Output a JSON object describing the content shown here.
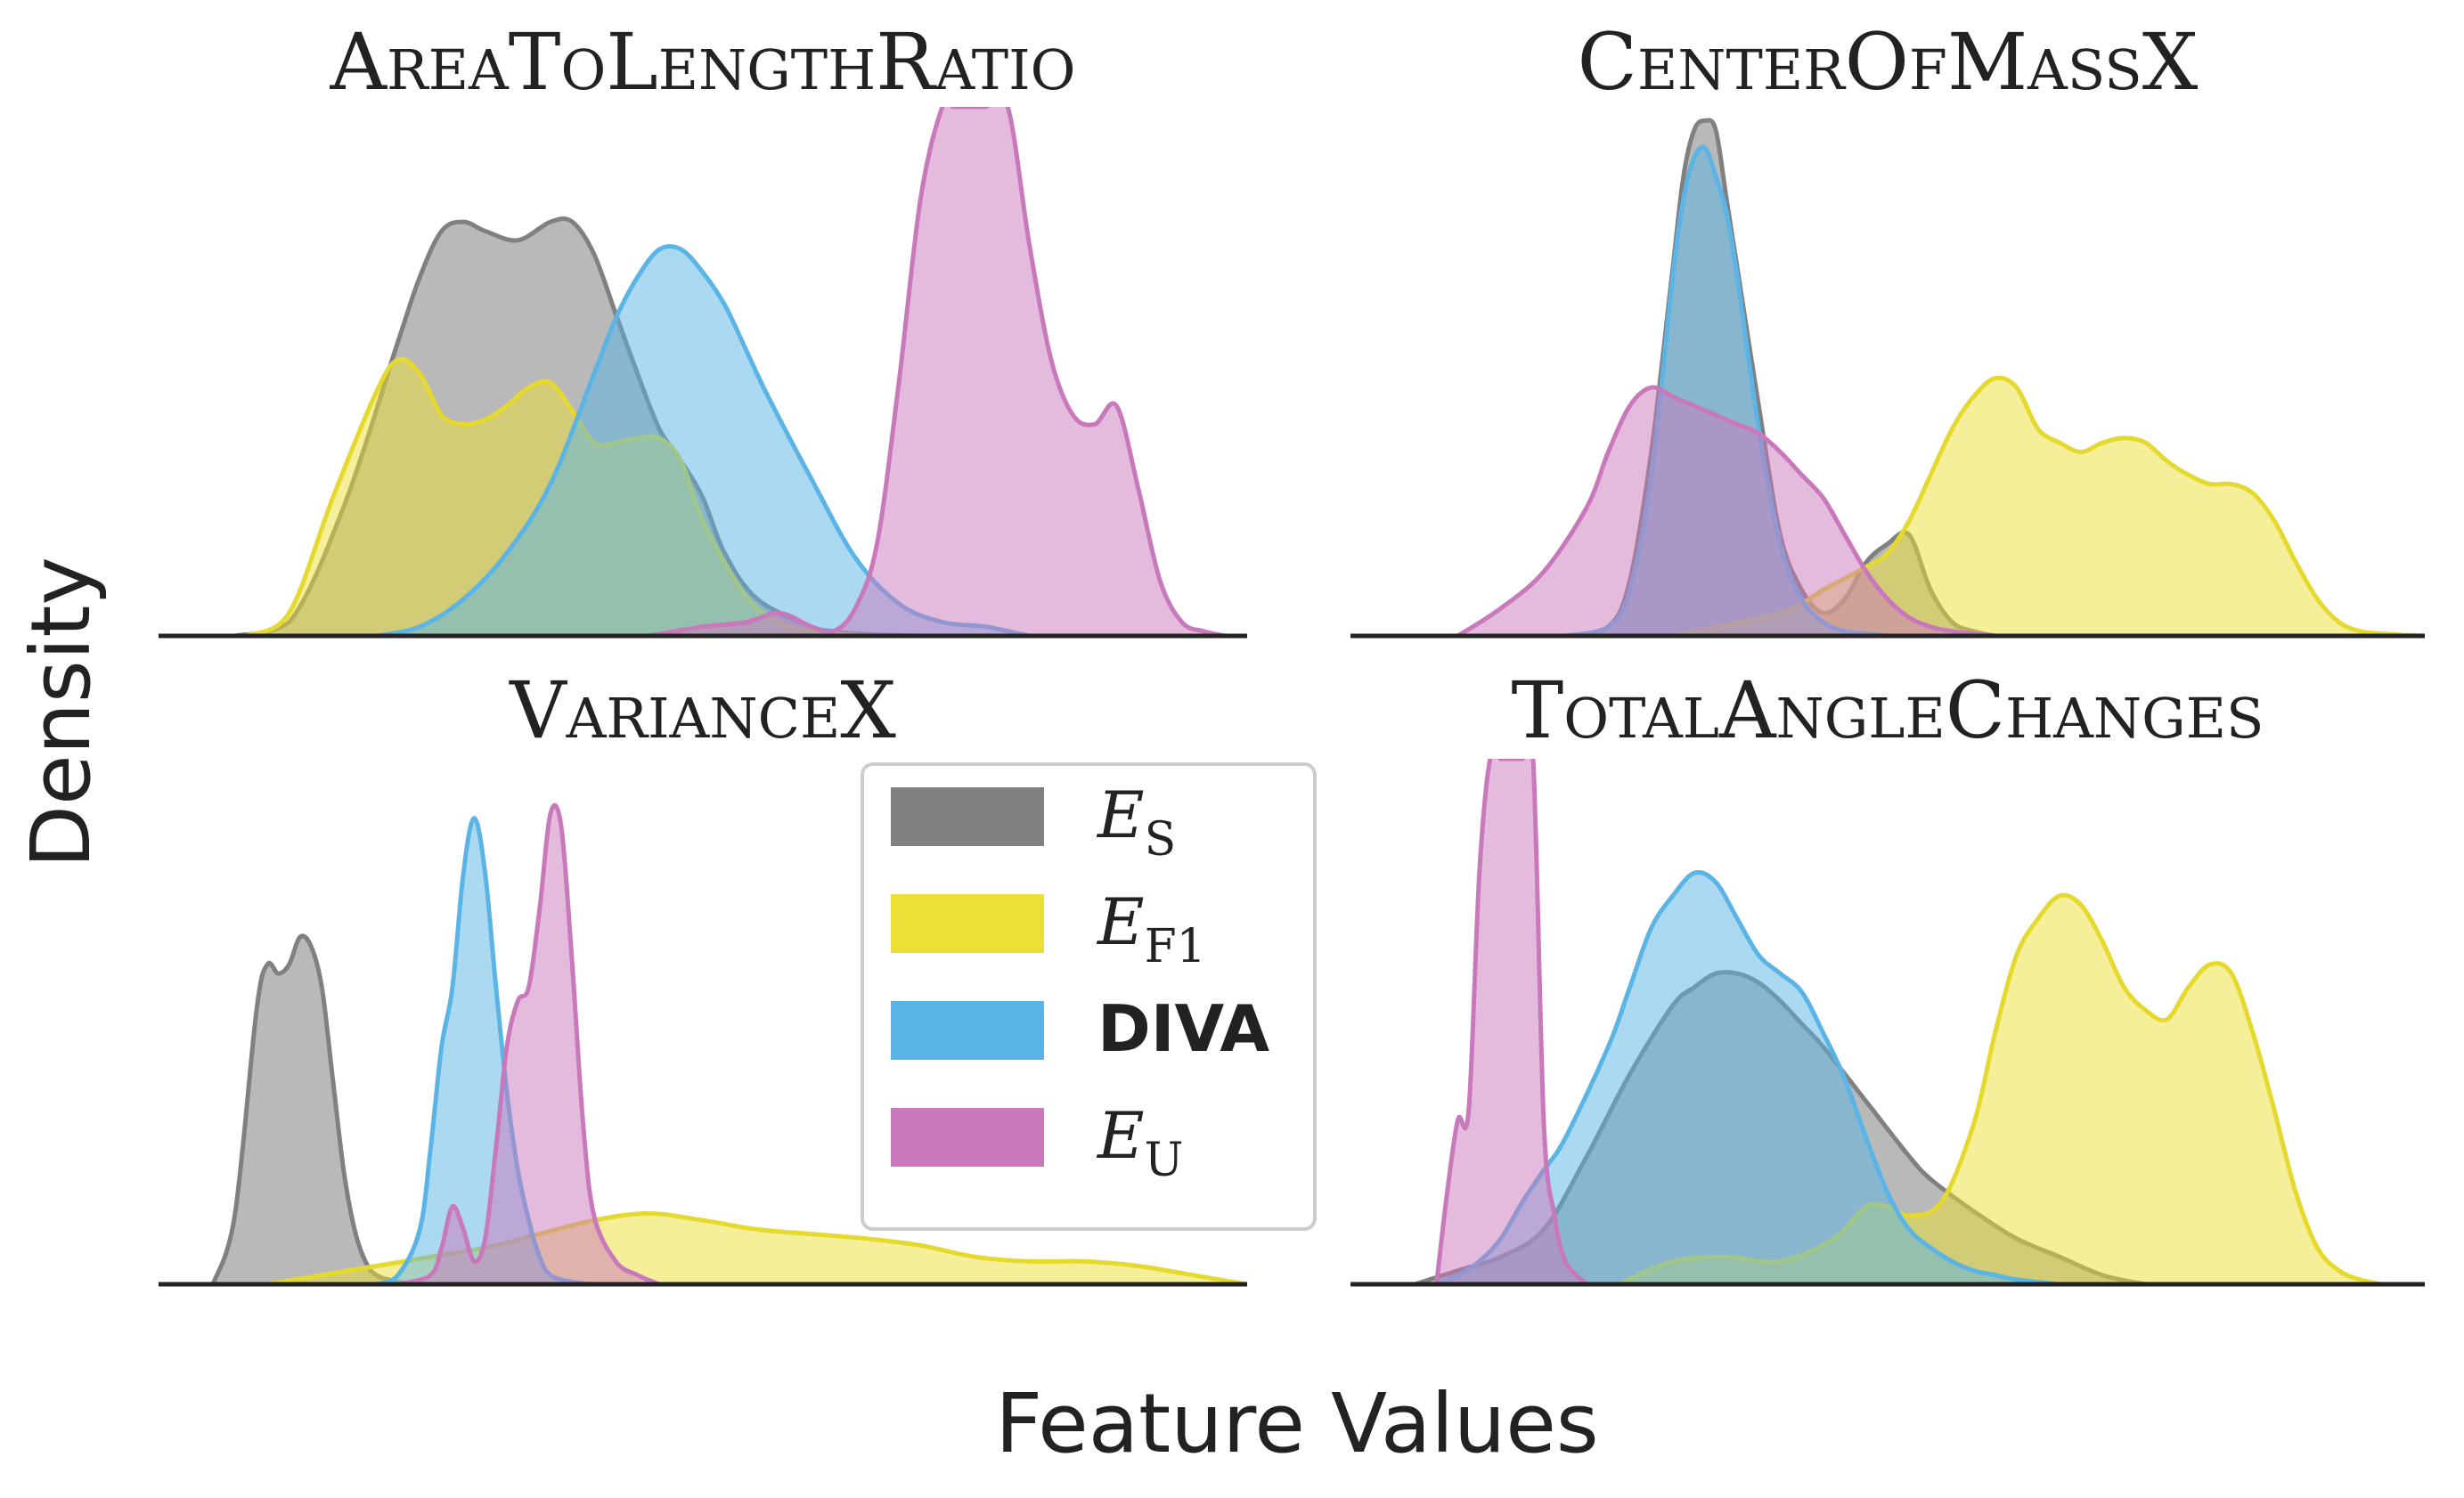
{
  "figure": {
    "ylabel": "Density",
    "xlabel": "Feature Values"
  },
  "legend": {
    "placement": "center",
    "items": [
      {
        "key": "es",
        "main": "E",
        "sub": "S",
        "bold": false,
        "color": "#808080"
      },
      {
        "key": "ef1",
        "main": "E",
        "sub": "F1",
        "bold": false,
        "color": "#ece036"
      },
      {
        "key": "diva",
        "main": "DIVA",
        "sub": "",
        "bold": true,
        "color": "#5ab4e6"
      },
      {
        "key": "eu",
        "main": "E",
        "sub": "U",
        "bold": false,
        "color": "#c978bb"
      }
    ]
  },
  "series_styles": {
    "es": {
      "fill": "#808080",
      "stroke": "#808080",
      "fill_opacity": 0.55
    },
    "ef1": {
      "fill": "#ece036",
      "stroke": "#e6d92e",
      "fill_opacity": 0.5
    },
    "diva": {
      "fill": "#5ab4e6",
      "stroke": "#5ab4e6",
      "fill_opacity": 0.5
    },
    "eu": {
      "fill": "#c978bb",
      "stroke": "#c978bb",
      "fill_opacity": 0.5
    }
  },
  "chart_data": [
    {
      "type": "area",
      "title": "AreaToLengthRatio",
      "xlabel": "",
      "ylabel": "",
      "xlim": [
        0,
        100
      ],
      "ylim": [
        0,
        1.15
      ],
      "grid": false,
      "series": [
        {
          "key": "es",
          "name": "E_S",
          "x": [
            7,
            12,
            17,
            22,
            24,
            26,
            28,
            30,
            33,
            36,
            38,
            40,
            42,
            44,
            46,
            48,
            50,
            52,
            55,
            60,
            62,
            64,
            67,
            70
          ],
          "y": [
            0,
            0.03,
            0.28,
            0.64,
            0.78,
            0.88,
            0.9,
            0.88,
            0.86,
            0.9,
            0.9,
            0.83,
            0.7,
            0.57,
            0.45,
            0.38,
            0.3,
            0.18,
            0.08,
            0.02,
            0.01,
            0.005,
            0.002,
            0
          ]
        },
        {
          "key": "ef1",
          "name": "E_F1",
          "x": [
            8,
            12,
            16,
            20,
            22,
            24,
            26,
            28,
            30,
            32,
            34,
            36,
            38,
            40,
            42,
            44,
            46,
            48,
            50,
            53,
            55,
            58,
            60,
            62,
            64,
            66,
            68
          ],
          "y": [
            0,
            0.05,
            0.3,
            0.53,
            0.6,
            0.57,
            0.48,
            0.46,
            0.47,
            0.5,
            0.54,
            0.55,
            0.49,
            0.42,
            0.42,
            0.43,
            0.43,
            0.38,
            0.25,
            0.12,
            0.06,
            0.02,
            0.01,
            0.005,
            0.002,
            0.001,
            0
          ]
        },
        {
          "key": "diva",
          "name": "DIVA",
          "x": [
            20,
            24,
            28,
            32,
            36,
            40,
            42,
            44,
            46,
            48,
            50,
            52,
            54,
            56,
            60,
            64,
            68,
            72,
            76,
            80
          ],
          "y": [
            0,
            0.02,
            0.08,
            0.18,
            0.33,
            0.57,
            0.69,
            0.78,
            0.84,
            0.84,
            0.79,
            0.72,
            0.62,
            0.52,
            0.34,
            0.17,
            0.07,
            0.03,
            0.02,
            0
          ]
        },
        {
          "key": "eu",
          "name": "E_U",
          "x": [
            45,
            50,
            54,
            57,
            60,
            62,
            64,
            66,
            68,
            70,
            72,
            73,
            74,
            75,
            76,
            78,
            80,
            82,
            84,
            86,
            88,
            90,
            92,
            94,
            96,
            98
          ],
          "y": [
            0,
            0.02,
            0.03,
            0.05,
            0.02,
            0.01,
            0.06,
            0.2,
            0.55,
            0.95,
            1.15,
            1.15,
            1.15,
            1.15,
            1.15,
            1.15,
            0.85,
            0.6,
            0.48,
            0.46,
            0.5,
            0.32,
            0.12,
            0.03,
            0.01,
            0
          ]
        }
      ]
    },
    {
      "type": "area",
      "title": "CenterOfMassX",
      "xlabel": "",
      "ylabel": "",
      "xlim": [
        0,
        100
      ],
      "ylim": [
        0,
        1.15
      ],
      "grid": false,
      "series": [
        {
          "key": "es",
          "name": "E_S",
          "x": [
            20,
            24,
            26,
            28,
            30,
            31,
            32,
            33,
            34,
            35,
            36,
            38,
            40,
            42,
            44,
            46,
            48,
            50,
            52,
            54,
            56,
            58,
            60
          ],
          "y": [
            0,
            0.02,
            0.12,
            0.4,
            0.8,
            1.0,
            1.1,
            1.12,
            1.1,
            0.95,
            0.8,
            0.5,
            0.22,
            0.1,
            0.05,
            0.08,
            0.16,
            0.2,
            0.22,
            0.1,
            0.03,
            0.01,
            0
          ]
        },
        {
          "key": "ef1",
          "name": "E_F1",
          "x": [
            30,
            40,
            44,
            48,
            50,
            52,
            54,
            56,
            58,
            60,
            62,
            64,
            66,
            68,
            70,
            72,
            74,
            76,
            78,
            80,
            82,
            84,
            86,
            88,
            90,
            92,
            94,
            96,
            98,
            100
          ],
          "y": [
            0,
            0.05,
            0.1,
            0.15,
            0.18,
            0.25,
            0.35,
            0.45,
            0.52,
            0.56,
            0.54,
            0.45,
            0.42,
            0.4,
            0.42,
            0.43,
            0.42,
            0.38,
            0.35,
            0.33,
            0.33,
            0.31,
            0.25,
            0.16,
            0.08,
            0.03,
            0.01,
            0.005,
            0.002,
            0
          ]
        },
        {
          "key": "diva",
          "name": "DIVA",
          "x": [
            20,
            24,
            26,
            28,
            30,
            31,
            32,
            33,
            34,
            35,
            36,
            38,
            40,
            42,
            44,
            46,
            48,
            50
          ],
          "y": [
            0,
            0.02,
            0.1,
            0.35,
            0.78,
            0.95,
            1.04,
            1.06,
            1.0,
            0.92,
            0.78,
            0.45,
            0.2,
            0.08,
            0.03,
            0.01,
            0.005,
            0
          ]
        },
        {
          "key": "eu",
          "name": "E_U",
          "x": [
            10,
            14,
            18,
            22,
            24,
            26,
            28,
            30,
            32,
            34,
            36,
            38,
            40,
            42,
            44,
            46,
            48,
            50,
            52,
            54,
            56,
            58,
            60
          ],
          "y": [
            0,
            0.06,
            0.14,
            0.28,
            0.4,
            0.5,
            0.54,
            0.52,
            0.5,
            0.48,
            0.46,
            0.44,
            0.4,
            0.35,
            0.3,
            0.22,
            0.14,
            0.08,
            0.04,
            0.02,
            0.01,
            0.005,
            0
          ]
        }
      ]
    },
    {
      "type": "area",
      "title": "VarianceX",
      "xlabel": "",
      "ylabel": "",
      "xlim": [
        0,
        100
      ],
      "ylim": [
        0,
        1.15
      ],
      "grid": false,
      "series": [
        {
          "key": "es",
          "name": "E_S",
          "x": [
            5,
            7,
            9,
            10,
            11,
            12,
            13,
            14,
            15,
            16,
            17,
            18,
            19,
            20,
            22,
            24
          ],
          "y": [
            0,
            0.15,
            0.6,
            0.7,
            0.68,
            0.7,
            0.76,
            0.74,
            0.65,
            0.45,
            0.25,
            0.12,
            0.05,
            0.02,
            0.005,
            0
          ]
        },
        {
          "key": "ef1",
          "name": "E_F1",
          "x": [
            10,
            15,
            20,
            25,
            30,
            35,
            40,
            45,
            50,
            55,
            60,
            65,
            70,
            75,
            80,
            85,
            90,
            95,
            100
          ],
          "y": [
            0,
            0.02,
            0.04,
            0.06,
            0.08,
            0.11,
            0.14,
            0.155,
            0.14,
            0.12,
            0.11,
            0.1,
            0.085,
            0.06,
            0.05,
            0.05,
            0.04,
            0.02,
            0
          ]
        },
        {
          "key": "diva",
          "name": "DIVA",
          "x": [
            20,
            22,
            24,
            25,
            26,
            27,
            28,
            29,
            30,
            31,
            32,
            33,
            34,
            35,
            36,
            38,
            40
          ],
          "y": [
            0,
            0.02,
            0.12,
            0.3,
            0.52,
            0.65,
            0.9,
            1.02,
            0.9,
            0.65,
            0.42,
            0.25,
            0.14,
            0.06,
            0.02,
            0.005,
            0
          ]
        },
        {
          "key": "eu",
          "name": "E_U",
          "x": [
            22,
            25,
            26,
            27,
            28,
            29,
            30,
            31,
            32,
            33,
            34,
            35,
            36,
            37,
            38,
            39,
            40,
            42,
            44,
            46
          ],
          "y": [
            0,
            0.02,
            0.08,
            0.17,
            0.12,
            0.05,
            0.1,
            0.3,
            0.52,
            0.62,
            0.65,
            0.82,
            1.03,
            1.0,
            0.7,
            0.35,
            0.15,
            0.05,
            0.02,
            0
          ]
        }
      ]
    },
    {
      "type": "area",
      "title": "TotalAngleChanges",
      "xlabel": "",
      "ylabel": "",
      "xlim": [
        0,
        100
      ],
      "ylim": [
        0,
        1.15
      ],
      "grid": false,
      "series": [
        {
          "key": "es",
          "name": "E_S",
          "x": [
            6,
            10,
            14,
            18,
            22,
            26,
            30,
            32,
            34,
            36,
            38,
            40,
            42,
            44,
            48,
            52,
            54,
            58,
            62,
            66,
            70,
            74
          ],
          "y": [
            0,
            0.03,
            0.06,
            0.12,
            0.28,
            0.46,
            0.61,
            0.65,
            0.68,
            0.68,
            0.66,
            0.62,
            0.57,
            0.52,
            0.4,
            0.28,
            0.23,
            0.16,
            0.1,
            0.06,
            0.02,
            0
          ]
        },
        {
          "key": "ef1",
          "name": "E_F1",
          "x": [
            25,
            30,
            35,
            40,
            45,
            48,
            50,
            52,
            55,
            58,
            60,
            62,
            64,
            66,
            68,
            70,
            72,
            74,
            76,
            78,
            80,
            82,
            84,
            86,
            88,
            90,
            92,
            94,
            96
          ],
          "y": [
            0,
            0.05,
            0.06,
            0.05,
            0.1,
            0.17,
            0.17,
            0.15,
            0.18,
            0.35,
            0.55,
            0.72,
            0.8,
            0.85,
            0.83,
            0.75,
            0.65,
            0.6,
            0.58,
            0.65,
            0.7,
            0.68,
            0.55,
            0.38,
            0.2,
            0.08,
            0.03,
            0.01,
            0
          ]
        },
        {
          "key": "diva",
          "name": "DIVA",
          "x": [
            8,
            10,
            12,
            14,
            16,
            18,
            20,
            24,
            26,
            28,
            30,
            32,
            34,
            36,
            38,
            40,
            42,
            44,
            46,
            48,
            50,
            52,
            54,
            56,
            58,
            60,
            62,
            66
          ],
          "y": [
            0,
            0.02,
            0.05,
            0.1,
            0.18,
            0.25,
            0.32,
            0.52,
            0.65,
            0.78,
            0.85,
            0.9,
            0.88,
            0.8,
            0.72,
            0.68,
            0.64,
            0.55,
            0.45,
            0.32,
            0.2,
            0.12,
            0.08,
            0.05,
            0.03,
            0.02,
            0.01,
            0
          ]
        },
        {
          "key": "eu",
          "name": "E_U",
          "x": [
            8,
            9,
            10,
            11,
            12,
            13,
            14,
            15,
            16,
            17,
            18,
            19,
            20,
            22
          ],
          "y": [
            0,
            0.2,
            0.36,
            0.38,
            0.9,
            1.15,
            1.15,
            1.15,
            1.15,
            1.15,
            0.35,
            0.15,
            0.05,
            0
          ]
        }
      ]
    }
  ]
}
